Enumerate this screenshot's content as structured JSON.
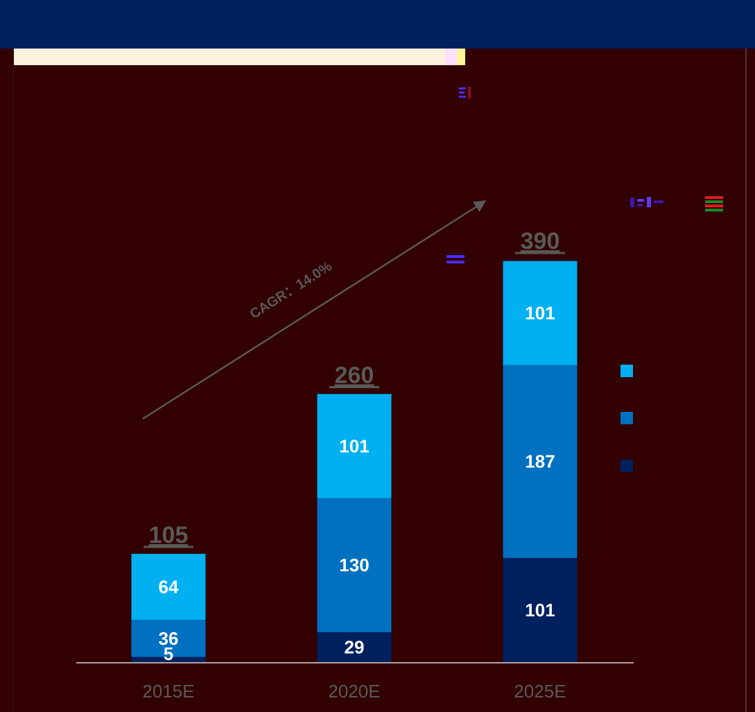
{
  "chart_data": {
    "type": "bar",
    "stacked": true,
    "categories": [
      "2015E",
      "2020E",
      "2025E"
    ],
    "series": [
      {
        "values": [
          5,
          29,
          101
        ],
        "color": "#00205e"
      },
      {
        "values": [
          36,
          130,
          187
        ],
        "color": "#0070c0"
      },
      {
        "values": [
          64,
          101,
          101
        ],
        "color": "#00b0f0"
      }
    ],
    "totals": [
      105,
      260,
      390
    ],
    "ylim": [
      0,
      390
    ],
    "grid": false,
    "legend": {
      "placement": "right"
    },
    "annotation": "CAGR：14.0%",
    "title": "",
    "xlabel": "",
    "ylabel": ""
  },
  "colors": {
    "background": "#320000",
    "header": "#00205e",
    "axis_label": "#595959",
    "total_label": "#595959",
    "value_label": "#ffffff",
    "arrow": "#595959"
  }
}
